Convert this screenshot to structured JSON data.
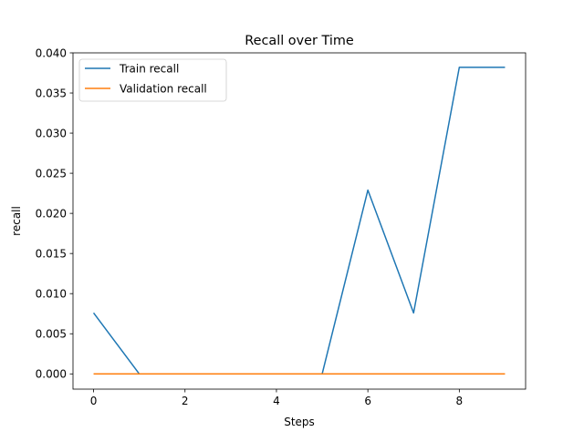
{
  "chart_data": {
    "type": "line",
    "title": "Recall over Time",
    "xlabel": "Steps",
    "ylabel": "recall",
    "x": [
      0,
      1,
      2,
      3,
      4,
      5,
      6,
      7,
      8,
      9
    ],
    "xlim": [
      -0.45,
      9.45
    ],
    "ylim": [
      -0.0019,
      0.04
    ],
    "xticks": [
      0,
      2,
      4,
      6,
      8
    ],
    "xtick_labels": [
      "0",
      "2",
      "4",
      "6",
      "8"
    ],
    "yticks": [
      0.0,
      0.005,
      0.01,
      0.015,
      0.02,
      0.025,
      0.03,
      0.035,
      0.04
    ],
    "ytick_labels": [
      "0.000",
      "0.005",
      "0.010",
      "0.015",
      "0.020",
      "0.025",
      "0.030",
      "0.035",
      "0.040"
    ],
    "grid": false,
    "legend_position": "top-left",
    "series": [
      {
        "name": "Train recall",
        "color": "#1f77b4",
        "values": [
          0.0076,
          0.0,
          0.0,
          0.0,
          0.0,
          0.0,
          0.0229,
          0.0076,
          0.0382,
          0.0382
        ]
      },
      {
        "name": "Validation recall",
        "color": "#ff7f0e",
        "values": [
          0.0,
          0.0,
          0.0,
          0.0,
          0.0,
          0.0,
          0.0,
          0.0,
          0.0,
          0.0
        ]
      }
    ]
  }
}
